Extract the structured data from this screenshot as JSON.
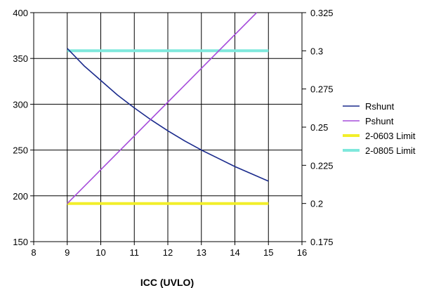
{
  "chart_data": {
    "type": "line",
    "title": "",
    "xlabel": "ICC (UVLO)",
    "ylabel": "",
    "y2label": "",
    "xlim": [
      8,
      16
    ],
    "ylim": [
      150,
      400
    ],
    "y2lim": [
      0.175,
      0.325
    ],
    "x_ticks": [
      "8",
      "9",
      "10",
      "11",
      "12",
      "13",
      "14",
      "15",
      "16"
    ],
    "y_ticks": [
      "150",
      "200",
      "250",
      "300",
      "350",
      "400"
    ],
    "y2_ticks": [
      "0.175",
      "0.2",
      "0.225",
      "0.25",
      "0.275",
      "0.3",
      "0.325"
    ],
    "grid": true,
    "legend_position": "right",
    "series": [
      {
        "name": "Rshunt",
        "axis": "left",
        "color": "#1a2a8c",
        "x": [
          9,
          9.5,
          10,
          10.5,
          11,
          11.5,
          12,
          12.5,
          13,
          13.5,
          14,
          14.5,
          15
        ],
        "y": [
          361,
          342,
          326,
          310,
          296,
          283,
          271,
          260,
          250,
          241,
          232,
          224,
          216
        ]
      },
      {
        "name": "Pshunt",
        "axis": "right",
        "color": "#a64ddb",
        "x": [
          9,
          14.65
        ],
        "y": [
          0.2,
          0.325
        ]
      },
      {
        "name": "2-0603 Limit",
        "axis": "right",
        "color": "#f2ef2a",
        "x": [
          9,
          15
        ],
        "y": [
          0.2,
          0.2
        ]
      },
      {
        "name": "2-0805 Limit",
        "axis": "right",
        "color": "#7fe8dc",
        "x": [
          9,
          15
        ],
        "y": [
          0.3,
          0.3
        ]
      }
    ]
  }
}
